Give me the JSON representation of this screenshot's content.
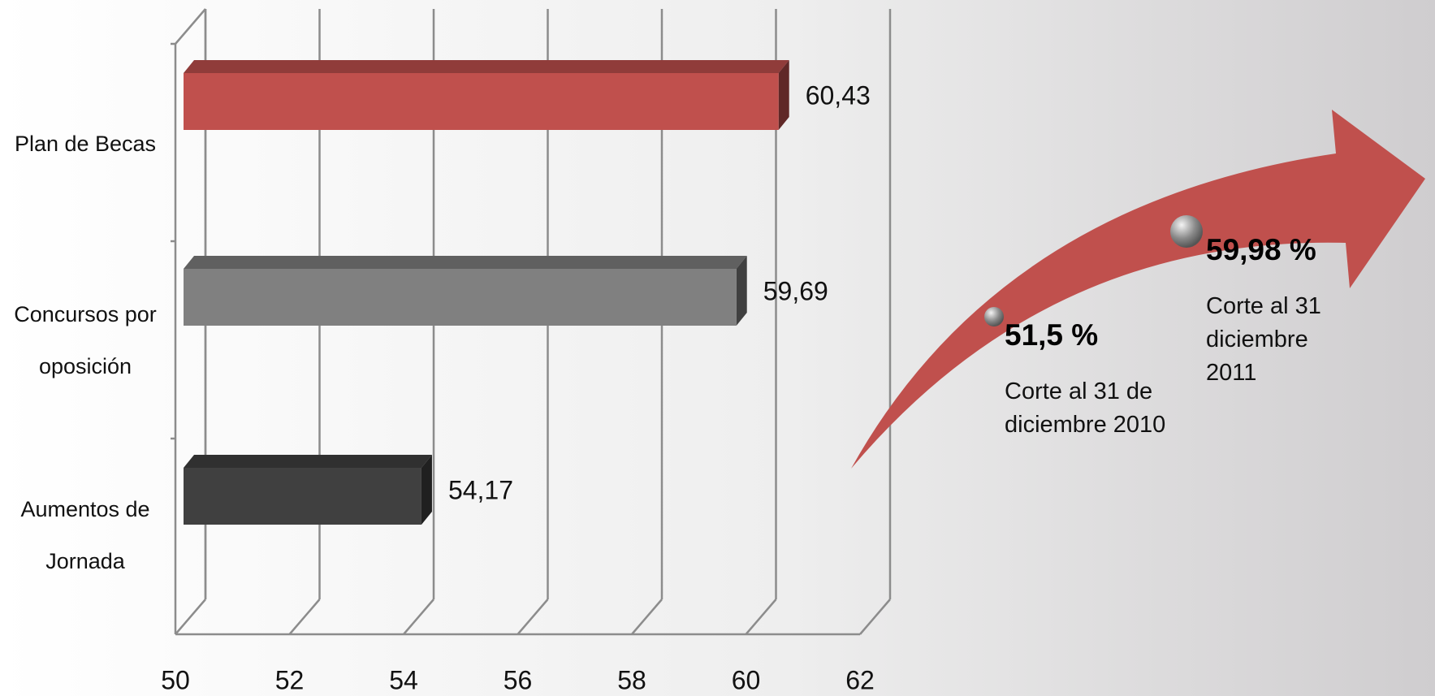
{
  "chart_data": {
    "type": "bar3d",
    "categories": [
      "Plan de Becas",
      "Concursos por oposición",
      "Aumentos de Jornada"
    ],
    "values": [
      60.43,
      59.69,
      54.17
    ],
    "value_labels": [
      "60,43",
      "59,69",
      "54,17"
    ],
    "colors": [
      "#c0504d",
      "#808080",
      "#404040"
    ],
    "xlim": [
      50,
      62
    ],
    "xticks": [
      50,
      52,
      54,
      56,
      58,
      60,
      62
    ],
    "grid": true,
    "annotations": [
      {
        "label": "51,5 %",
        "caption": "Corte al 31 de diciembre 2010"
      },
      {
        "label": "59,98 %",
        "caption": "Corte al 31 diciembre 2011"
      }
    ],
    "arrow_color": "#c0504d"
  }
}
